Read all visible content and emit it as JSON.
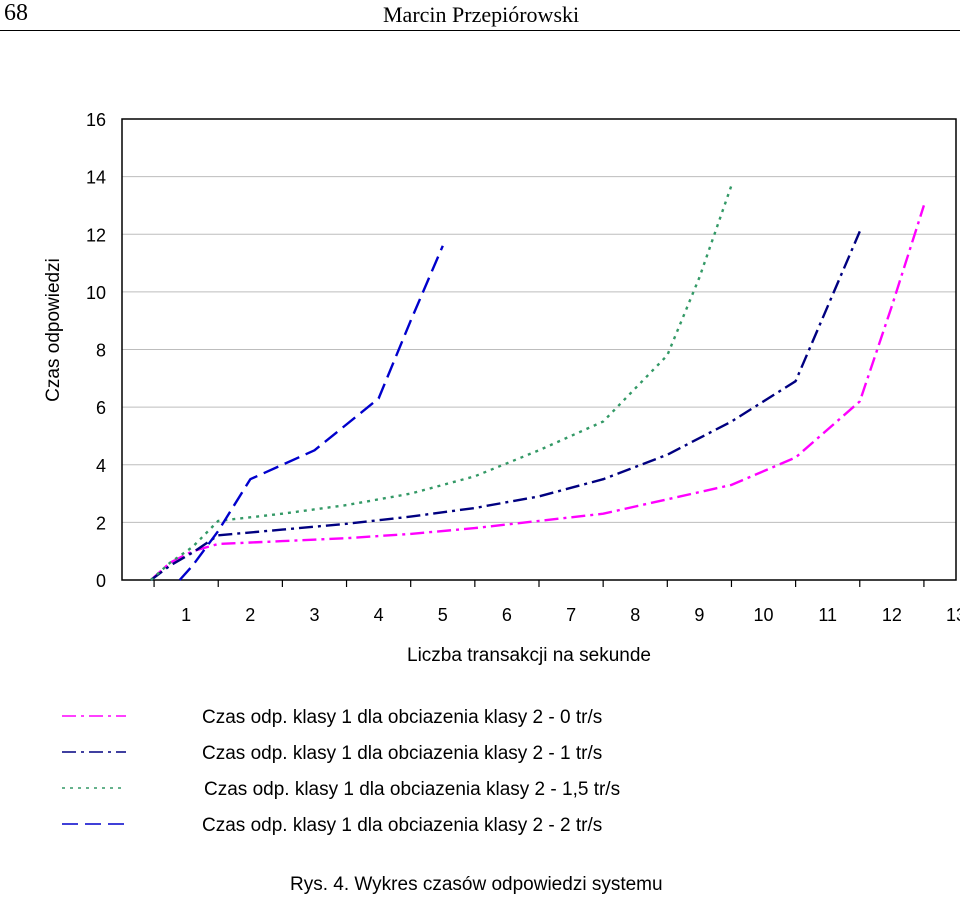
{
  "header": {
    "page_number": "68",
    "author": "Marcin Przepiórowski"
  },
  "caption": "Rys. 4. Wykres czasów odpowiedzi systemu",
  "colors": {
    "magenta": "#ff00ff",
    "navy": "#000080",
    "teal": "#339966",
    "blue": "#0000cc",
    "grid": "#bdbdbd"
  },
  "chart_data": {
    "type": "line",
    "title": "",
    "xlabel": "Liczba transakcji na sekunde",
    "ylabel": "Czas odpowiedzi",
    "xlim": [
      0,
      13
    ],
    "ylim": [
      0,
      16
    ],
    "xticks": [
      "1",
      "2",
      "3",
      "4",
      "5",
      "6",
      "7",
      "8",
      "9",
      "10",
      "11",
      "12",
      "13"
    ],
    "yticks": [
      "0",
      "2",
      "4",
      "6",
      "8",
      "10",
      "12",
      "14",
      "16"
    ],
    "grid": "horizontal",
    "series": [
      {
        "name": "Czas odp. klasy 1 dla obciazenia klasy 2 - 0 tr/s",
        "color": "#ff00ff",
        "dash": "14 5 3 5",
        "points": [
          [
            0.45,
            0
          ],
          [
            0.75,
            0.6
          ],
          [
            1.1,
            1.0
          ],
          [
            1.5,
            1.25
          ],
          [
            2.5,
            1.35
          ],
          [
            3.5,
            1.45
          ],
          [
            4.5,
            1.6
          ],
          [
            5.5,
            1.8
          ],
          [
            6.5,
            2.05
          ],
          [
            7.5,
            2.3
          ],
          [
            8.5,
            2.8
          ],
          [
            9.5,
            3.3
          ],
          [
            10.5,
            4.25
          ],
          [
            11.5,
            6.2
          ],
          [
            12.0,
            9.5
          ],
          [
            12.5,
            13.0
          ]
        ]
      },
      {
        "name": "Czas odp. klasy 1 dla obciazenia klasy 2 - 1 tr/s",
        "color": "#000080",
        "dash": "14 5 3 5",
        "points": [
          [
            0.45,
            0
          ],
          [
            0.75,
            0.5
          ],
          [
            1.1,
            0.95
          ],
          [
            1.5,
            1.55
          ],
          [
            2.5,
            1.75
          ],
          [
            3.5,
            1.95
          ],
          [
            4.5,
            2.2
          ],
          [
            5.5,
            2.5
          ],
          [
            6.5,
            2.9
          ],
          [
            7.5,
            3.5
          ],
          [
            8.5,
            4.35
          ],
          [
            9.5,
            5.5
          ],
          [
            10.5,
            6.9
          ],
          [
            11.0,
            9.5
          ],
          [
            11.5,
            12.1
          ]
        ]
      },
      {
        "name": "Czas odp. klasy 1 dla obciazenia klasy 2 - 1,5 tr/s",
        "color": "#339966",
        "dash": "3 5",
        "points": [
          [
            0.45,
            0
          ],
          [
            0.75,
            0.6
          ],
          [
            1.1,
            1.15
          ],
          [
            1.5,
            2.05
          ],
          [
            2.5,
            2.3
          ],
          [
            3.5,
            2.6
          ],
          [
            4.5,
            3.0
          ],
          [
            5.5,
            3.6
          ],
          [
            6.5,
            4.5
          ],
          [
            7.5,
            5.5
          ],
          [
            8.5,
            7.8
          ],
          [
            9.0,
            10.5
          ],
          [
            9.5,
            13.7
          ]
        ]
      },
      {
        "name": "Czas odp. klasy 1 dla obciazenia klasy 2 - 2 tr/s",
        "color": "#0000cc",
        "dash": "16 7",
        "points": [
          [
            0.9,
            0
          ],
          [
            1.1,
            0.5
          ],
          [
            1.5,
            1.7
          ],
          [
            2.0,
            3.5
          ],
          [
            3.0,
            4.5
          ],
          [
            4.0,
            6.3
          ],
          [
            4.5,
            9.0
          ],
          [
            5.0,
            11.6
          ]
        ]
      }
    ]
  }
}
